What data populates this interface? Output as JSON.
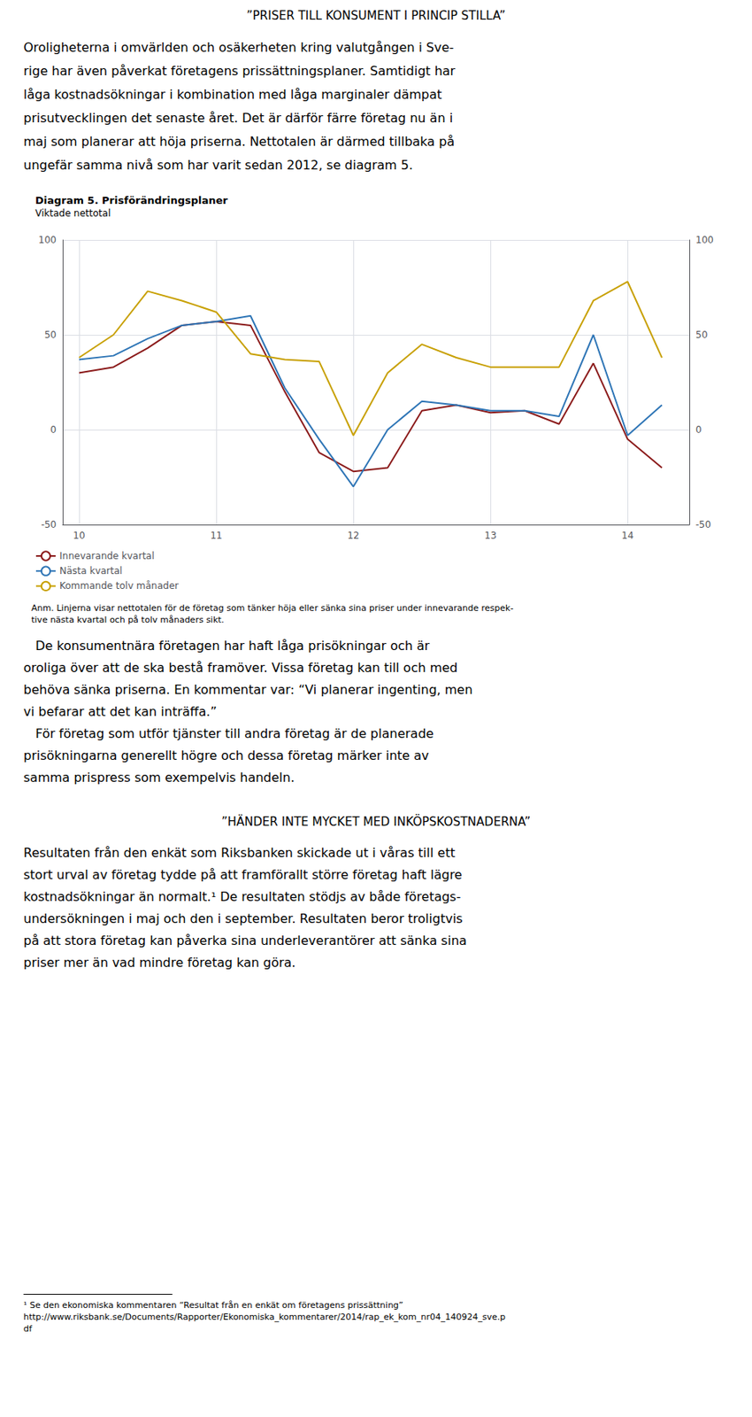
{
  "chart_data": {
    "type": "line",
    "title": "Diagram 5. Prisförändringsplaner",
    "subtitle": "Viktade nettotal",
    "x": [
      10.0,
      10.25,
      10.5,
      10.75,
      11.0,
      11.25,
      11.5,
      11.75,
      12.0,
      12.25,
      12.5,
      12.75,
      13.0,
      13.25,
      13.5,
      13.75,
      14.0,
      14.25
    ],
    "series": [
      {
        "name": "Innevarande kvartal",
        "color": "#8B1A1A",
        "values": [
          30,
          33,
          43,
          55,
          57,
          55,
          20,
          -12,
          -22,
          -20,
          10,
          13,
          9,
          10,
          3,
          35,
          -5,
          -20
        ]
      },
      {
        "name": "Nästa kvartal",
        "color": "#2E75B6",
        "values": [
          37,
          39,
          48,
          55,
          57,
          60,
          22,
          -5,
          -30,
          0,
          15,
          13,
          10,
          10,
          7,
          50,
          -3,
          13
        ]
      },
      {
        "name": "Kommande tolv månader",
        "color": "#C8A000",
        "values": [
          38,
          50,
          73,
          68,
          62,
          40,
          37,
          36,
          -3,
          30,
          45,
          38,
          33,
          33,
          33,
          68,
          78,
          38
        ]
      }
    ],
    "xlim": [
      9.88,
      14.45
    ],
    "xticks": [
      10,
      11,
      12,
      13,
      14
    ],
    "ylim": [
      -50,
      100
    ],
    "yticks": [
      -50,
      0,
      50,
      100
    ],
    "y2lim": [
      -50,
      100
    ],
    "y2ticks": [
      -50,
      0,
      50,
      100
    ],
    "grid": true,
    "legend": "bottom left",
    "annotations": [
      "Anm. Linjerna visar nettotalen för de företag som tänker höja eller sänka sina priser under innevarande respek-",
      "tive nästa kvartal och på tolv månaders sikt."
    ]
  },
  "page_text": {
    "heading_1": "”PRISER TILL KONSUMENT I PRINCIP STILLA”",
    "paragraph_1": [
      "Oroligheterna i omvärlden och osäkerheten kring valutgången i Sve-",
      "rige har även påverkat företagens prissättningsplaner. Samtidigt har",
      "låga kostnadsökningar i kombination med låga marginaler dämpat",
      "prisutvecklingen det senaste året. Det är därför färre företag nu än i",
      "maj som planerar att höja priserna. Nettotalen är därmed tillbaka på",
      "ungefär samma nivå som har varit sedan 2012, se diagram 5."
    ],
    "paragraph_2": [
      "   De konsumentnära företagen har haft låga prisökningar och är",
      "oroliga över att de ska bestå framöver. Vissa företag kan till och med",
      "behöva sänka priserna. En kommentar var: “Vi planerar ingenting, men",
      "vi befarar att det kan inträffa.”",
      "   För företag som utför tjänster till andra företag är de planerade",
      "prisökningarna generellt högre och dessa företag märker inte av",
      "samma prispress som exempelvis handeln."
    ],
    "heading_2": "”HÄNDER INTE MYCKET MED INKÖPSKOSTNADERNA”",
    "paragraph_3": [
      "Resultaten från den enkät som Riksbanken skickade ut i våras till ett",
      "stort urval av företag tydde på att framförallt större företag haft lägre",
      "kostnadsökningar än normalt.¹ De resultaten stödjs av både företags-",
      "undersökningen i maj och den i september. Resultaten beror troligtvis",
      "på att stora företag kan påverka sina underleverantörer att sänka sina",
      "priser mer än vad mindre företag kan göra."
    ],
    "footnotes": [
      "¹ Se den ekonomiska kommentaren “Resultat från en enkät om företagens prissättning”",
      "http://www.riksbank.se/Documents/Rapporter/Ekonomiska_kommentarer/2014/rap_ek_kom_nr04_140924_sve.p",
      "df"
    ]
  }
}
